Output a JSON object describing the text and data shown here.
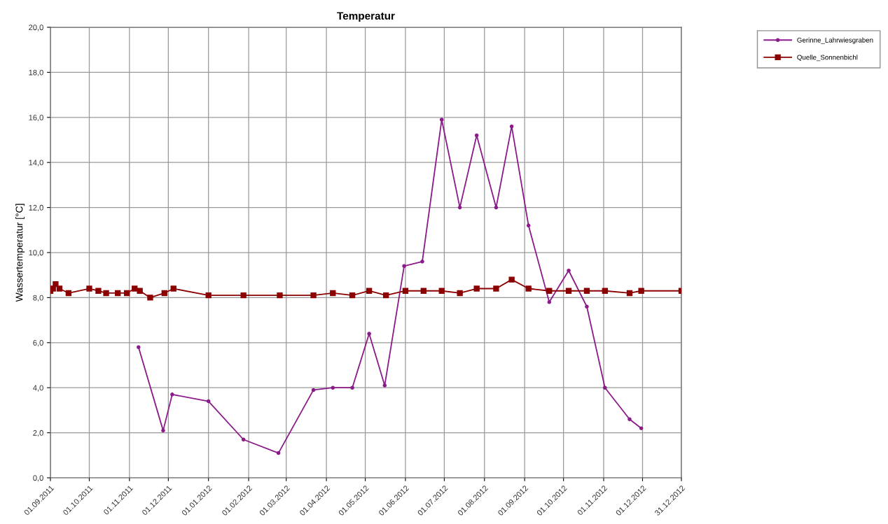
{
  "chart_data": {
    "type": "line",
    "title": "Temperatur",
    "ylabel": "Wassertemperatur [°C]",
    "xlim": [
      "2011-09-01",
      "2012-12-31"
    ],
    "xticks": [
      {
        "value": "2011-09-01",
        "label": "01.09.2011"
      },
      {
        "value": "2011-10-01",
        "label": "01.10.2011"
      },
      {
        "value": "2011-11-01",
        "label": "01.11.2011"
      },
      {
        "value": "2011-12-01",
        "label": "01.12.2011"
      },
      {
        "value": "2012-01-01",
        "label": "01.01.2012"
      },
      {
        "value": "2012-02-01",
        "label": "01.02.2012"
      },
      {
        "value": "2012-03-01",
        "label": "01.03.2012"
      },
      {
        "value": "2012-04-01",
        "label": "01.04.2012"
      },
      {
        "value": "2012-05-01",
        "label": "01.05.2012"
      },
      {
        "value": "2012-06-01",
        "label": "01.06.2012"
      },
      {
        "value": "2012-07-01",
        "label": "01.07.2012"
      },
      {
        "value": "2012-08-01",
        "label": "01.08.2012"
      },
      {
        "value": "2012-09-01",
        "label": "01.09.2012"
      },
      {
        "value": "2012-10-01",
        "label": "01.10.2012"
      },
      {
        "value": "2012-11-01",
        "label": "01.11.2012"
      },
      {
        "value": "2012-12-01",
        "label": "01.12.2012"
      },
      {
        "value": "2012-12-31",
        "label": "31.12.2012"
      }
    ],
    "ylim": [
      0,
      20
    ],
    "yticks": [
      {
        "value": 0,
        "label": "0,0"
      },
      {
        "value": 2,
        "label": "2,0"
      },
      {
        "value": 4,
        "label": "4,0"
      },
      {
        "value": 6,
        "label": "6,0"
      },
      {
        "value": 8,
        "label": "8,0"
      },
      {
        "value": 10,
        "label": "10,0"
      },
      {
        "value": 12,
        "label": "12,0"
      },
      {
        "value": 14,
        "label": "14,0"
      },
      {
        "value": 16,
        "label": "16,0"
      },
      {
        "value": 18,
        "label": "18,0"
      },
      {
        "value": 20,
        "label": "20,0"
      }
    ],
    "grid": true,
    "legend": "top right",
    "line_style": "solid",
    "series": [
      {
        "name": "Gerinne_Lahrwiesgraben",
        "color": "#8b1a8b",
        "marker": "circle",
        "x": [
          "2011-11-08",
          "2011-11-27",
          "2011-12-04",
          "2012-01-01",
          "2012-01-28",
          "2012-02-24",
          "2012-03-22",
          "2012-04-06",
          "2012-04-21",
          "2012-05-04",
          "2012-05-16",
          "2012-05-31",
          "2012-06-14",
          "2012-06-29",
          "2012-07-13",
          "2012-07-26",
          "2012-08-10",
          "2012-08-22",
          "2012-09-04",
          "2012-09-20",
          "2012-10-05",
          "2012-10-19",
          "2012-11-02",
          "2012-11-21",
          "2012-11-30"
        ],
        "values": [
          5.8,
          2.1,
          3.7,
          3.4,
          1.7,
          1.1,
          3.9,
          4.0,
          4.0,
          6.4,
          4.1,
          9.4,
          9.6,
          15.9,
          12.0,
          15.2,
          12.0,
          15.6,
          11.2,
          7.8,
          9.2,
          7.6,
          4.0,
          2.6,
          2.2
        ]
      },
      {
        "name": "Quelle_Sonnenbichl",
        "color": "#8b0000",
        "marker": "square",
        "x": [
          "2011-09-01",
          "2011-09-03",
          "2011-09-05",
          "2011-09-08",
          "2011-09-15",
          "2011-10-01",
          "2011-10-08",
          "2011-10-14",
          "2011-10-23",
          "2011-10-30",
          "2011-11-05",
          "2011-11-09",
          "2011-11-17",
          "2011-11-28",
          "2011-12-05",
          "2012-01-01",
          "2012-01-28",
          "2012-02-25",
          "2012-03-22",
          "2012-04-06",
          "2012-04-21",
          "2012-05-04",
          "2012-05-17",
          "2012-06-01",
          "2012-06-15",
          "2012-06-29",
          "2012-07-13",
          "2012-07-26",
          "2012-08-10",
          "2012-08-22",
          "2012-09-04",
          "2012-09-20",
          "2012-10-05",
          "2012-10-19",
          "2012-11-02",
          "2012-11-21",
          "2012-11-30",
          "2012-12-31"
        ],
        "values": [
          8.3,
          8.4,
          8.6,
          8.4,
          8.2,
          8.4,
          8.3,
          8.2,
          8.2,
          8.2,
          8.4,
          8.3,
          8.0,
          8.2,
          8.4,
          8.1,
          8.1,
          8.1,
          8.1,
          8.2,
          8.1,
          8.3,
          8.1,
          8.3,
          8.3,
          8.3,
          8.2,
          8.4,
          8.4,
          8.8,
          8.4,
          8.3,
          8.3,
          8.3,
          8.3,
          8.2,
          8.3,
          8.3
        ]
      }
    ]
  }
}
